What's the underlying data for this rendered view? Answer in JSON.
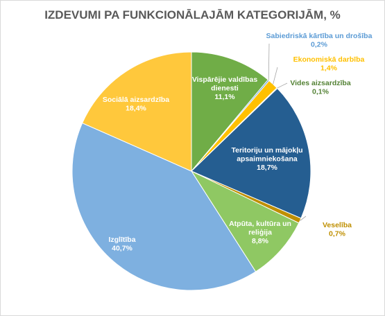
{
  "chart_data": {
    "type": "pie",
    "title": "IZDEVUMI PA FUNKCIONĀLAJĀM KATEGORIJĀM, %",
    "slices": [
      {
        "name": "Vispārējie valdības dienesti",
        "value": 11.1,
        "value_label": "11,1%",
        "color": "#70ad47"
      },
      {
        "name": "Sabiedriskā kārtība un drošība",
        "value": 0.2,
        "value_label": "0,2%",
        "color": "#5b9bd5"
      },
      {
        "name": "Ekonomiskā darbība",
        "value": 1.4,
        "value_label": "1,4%",
        "color": "#ffc000"
      },
      {
        "name": "Vides aizsardzība",
        "value": 0.1,
        "value_label": "0,1%",
        "color": "#548235"
      },
      {
        "name": "Teritoriju un mājokļu apsaimniekošana",
        "value": 18.7,
        "value_label": "18,7%",
        "color": "#255e91"
      },
      {
        "name": "Veselība",
        "value": 0.7,
        "value_label": "0,7%",
        "color": "#bf8f00"
      },
      {
        "name": "Atpūta, kultūra un reliģija",
        "value": 8.8,
        "value_label": "8,8%",
        "color": "#8fc863"
      },
      {
        "name": "Izglītība",
        "value": 40.7,
        "value_label": "40,7%",
        "color": "#7eb0e0"
      },
      {
        "name": "Sociālā aizsardzība",
        "value": 18.4,
        "value_label": "18,4%",
        "color": "#ffc83c"
      }
    ]
  }
}
